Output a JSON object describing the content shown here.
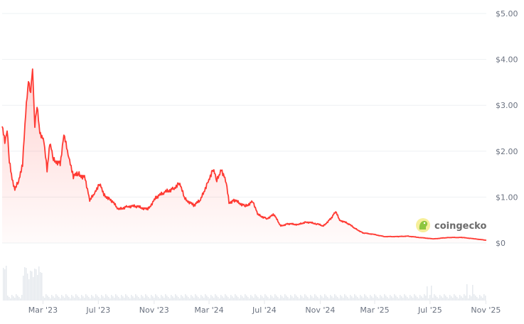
{
  "chart_data": {
    "type": "area",
    "title": "",
    "xlabel": "",
    "ylabel": "",
    "ylim": [
      0,
      5
    ],
    "grid": true,
    "y_ticks": [
      "$0",
      "$1.00",
      "$2.00",
      "$3.00",
      "$4.00",
      "$5.00"
    ],
    "x_ticks": [
      "Mar '23",
      "Jul '23",
      "Nov '23",
      "Mar '24",
      "Jul '24",
      "Nov '24",
      "Mar '25",
      "Jul '25",
      "Nov '25"
    ],
    "x_tick_dates": [
      "2023-03-01",
      "2023-07-01",
      "2023-11-01",
      "2024-03-01",
      "2024-07-01",
      "2024-11-01",
      "2025-03-01",
      "2025-07-01",
      "2025-11-01"
    ],
    "line_color": "#ff3a33",
    "volume_color": "#e5e9ee",
    "series": [
      {
        "x": [
          "2022-12-01",
          "2022-12-07",
          "2022-12-12",
          "2022-12-17",
          "2022-12-23",
          "2022-12-29",
          "2023-01-06",
          "2023-01-15",
          "2023-01-22",
          "2023-01-28",
          "2023-02-02",
          "2023-02-06",
          "2023-02-11",
          "2023-02-16",
          "2023-02-22",
          "2023-03-03",
          "2023-03-10",
          "2023-03-16",
          "2023-03-24",
          "2023-04-08",
          "2023-04-16",
          "2023-04-27",
          "2023-05-07",
          "2023-05-18",
          "2023-06-02",
          "2023-06-12",
          "2023-06-23",
          "2023-07-04",
          "2023-07-13",
          "2023-07-27",
          "2023-08-15",
          "2023-09-04",
          "2023-09-23",
          "2023-10-18",
          "2023-11-06",
          "2023-11-25",
          "2023-12-15",
          "2023-12-26",
          "2024-01-08",
          "2024-01-27",
          "2024-02-11",
          "2024-02-28",
          "2024-03-10",
          "2024-03-18",
          "2024-03-28",
          "2024-04-08",
          "2024-04-14",
          "2024-04-26",
          "2024-05-20",
          "2024-06-06",
          "2024-06-16",
          "2024-07-06",
          "2024-07-22",
          "2024-08-06",
          "2024-08-22",
          "2024-09-14",
          "2024-09-30",
          "2024-10-24",
          "2024-11-08",
          "2024-11-24",
          "2024-12-05",
          "2024-12-14",
          "2025-01-02",
          "2025-01-18",
          "2025-02-03",
          "2025-02-26",
          "2025-03-22",
          "2025-04-22",
          "2025-05-12",
          "2025-06-08",
          "2025-07-09",
          "2025-08-10",
          "2025-09-10",
          "2025-10-08",
          "2025-11-02"
        ],
        "y": [
          2.54,
          2.2,
          2.5,
          1.76,
          1.42,
          1.15,
          1.35,
          1.73,
          2.82,
          3.56,
          3.28,
          3.82,
          2.58,
          2.97,
          2.43,
          2.2,
          1.58,
          2.2,
          1.81,
          1.73,
          2.35,
          1.89,
          1.46,
          1.5,
          1.42,
          0.91,
          1.11,
          1.3,
          1.04,
          0.96,
          0.73,
          0.8,
          0.8,
          0.73,
          1.0,
          1.11,
          1.19,
          1.32,
          0.96,
          0.82,
          0.93,
          1.35,
          1.62,
          1.35,
          1.62,
          1.3,
          0.88,
          0.93,
          0.8,
          0.91,
          0.62,
          0.53,
          0.62,
          0.37,
          0.42,
          0.4,
          0.46,
          0.42,
          0.37,
          0.53,
          0.68,
          0.5,
          0.42,
          0.31,
          0.22,
          0.19,
          0.14,
          0.14,
          0.15,
          0.12,
          0.09,
          0.12,
          0.12,
          0.09,
          0.06
        ]
      }
    ]
  },
  "watermark": {
    "text": "coingecko"
  }
}
